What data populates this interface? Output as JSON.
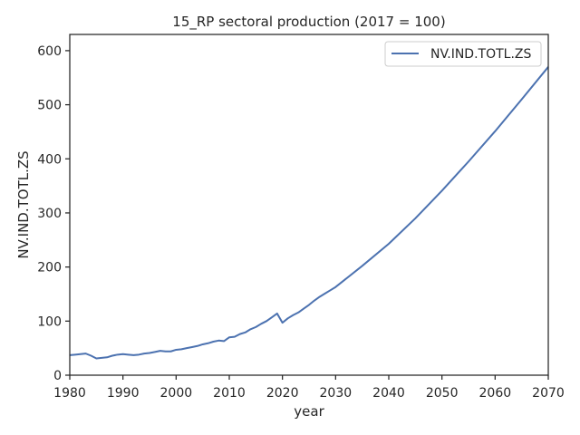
{
  "chart_data": {
    "type": "line",
    "title": "15_RP sectoral production (2017 = 100)",
    "xlabel": "year",
    "ylabel": "NV.IND.TOTL.ZS",
    "xlim": [
      1980,
      2070
    ],
    "ylim": [
      0,
      630
    ],
    "xticks": [
      1980,
      1990,
      2000,
      2010,
      2020,
      2030,
      2040,
      2050,
      2060,
      2070
    ],
    "yticks": [
      0,
      100,
      200,
      300,
      400,
      500,
      600
    ],
    "grid": false,
    "legend_position": "top-right",
    "series": [
      {
        "name": "NV.IND.TOTL.ZS",
        "color": "#4c72b0",
        "x": [
          1980,
          1981,
          1982,
          1983,
          1984,
          1985,
          1986,
          1987,
          1988,
          1989,
          1990,
          1991,
          1992,
          1993,
          1994,
          1995,
          1996,
          1997,
          1998,
          1999,
          2000,
          2001,
          2002,
          2003,
          2004,
          2005,
          2006,
          2007,
          2008,
          2009,
          2010,
          2011,
          2012,
          2013,
          2014,
          2015,
          2016,
          2017,
          2018,
          2019,
          2020,
          2021,
          2022,
          2023,
          2024,
          2025,
          2026,
          2027,
          2028,
          2029,
          2030,
          2035,
          2040,
          2045,
          2050,
          2055,
          2060,
          2065,
          2070
        ],
        "y": [
          37,
          38,
          39,
          40,
          36,
          31,
          32,
          33,
          36,
          38,
          39,
          38,
          37,
          38,
          40,
          41,
          43,
          45,
          44,
          44,
          47,
          48,
          50,
          52,
          54,
          57,
          59,
          62,
          64,
          63,
          70,
          71,
          76,
          79,
          85,
          89,
          95,
          100,
          107,
          114,
          97,
          105,
          111,
          116,
          123,
          130,
          138,
          145,
          151,
          157,
          163,
          202,
          243,
          290,
          341,
          395,
          451,
          510,
          570
        ]
      }
    ]
  }
}
